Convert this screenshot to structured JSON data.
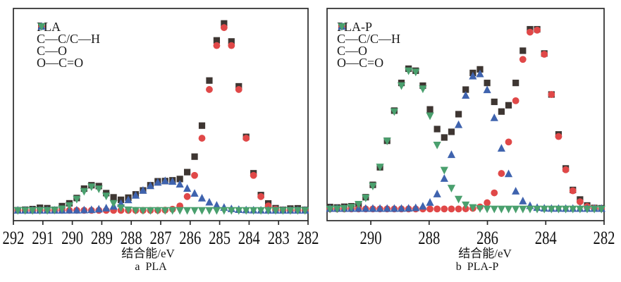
{
  "figure": {
    "description": "XPS C1s spectra with fitted components, two panels",
    "y_axis_note": "intensity, arbitrary units (no y ticks shown)"
  },
  "chart_data": [
    {
      "type": "scatter",
      "panel": "a",
      "title": "",
      "xlabel": "结合能/eV",
      "caption": "a  PLA",
      "x_axis": {
        "min": 292,
        "max": 282,
        "reversed": true,
        "ticks": [
          292,
          291,
          290,
          289,
          288,
          287,
          286,
          285,
          284,
          283,
          282
        ]
      },
      "y_axis": {
        "label": "",
        "ticks_visible": false,
        "range": [
          0,
          1.05
        ]
      },
      "sampling": {
        "x_start_eV": 291.85,
        "x_step_eV": 0.25,
        "n_points": 40
      },
      "legend": {
        "position": "top-left",
        "entries": [
          "PLA",
          "C—C/C—H",
          "C—O",
          "O—C=O"
        ]
      },
      "series": [
        {
          "name": "PLA",
          "marker": "square",
          "color": "#3E3632",
          "role": "envelope",
          "baseline": 0.012,
          "noise": 0.008
        },
        {
          "name": "C—C/C—H",
          "marker": "circle",
          "color": "#E04848",
          "role": "component",
          "baseline": 0.006,
          "peaks": [
            {
              "center_eV": 284.85,
              "height": 0.96,
              "sigma_eV": 0.55
            }
          ]
        },
        {
          "name": "C—O",
          "marker": "triangle-up",
          "color": "#3F63AE",
          "role": "component",
          "baseline": 0.006,
          "peaks": [
            {
              "center_eV": 286.8,
              "height": 0.155,
              "sigma_eV": 0.9
            }
          ]
        },
        {
          "name": "O—C=O",
          "marker": "triangle-down",
          "color": "#4AA06E",
          "role": "component",
          "baseline": 0.006,
          "peaks": [
            {
              "center_eV": 289.3,
              "height": 0.125,
              "sigma_eV": 0.45
            }
          ]
        }
      ],
      "peak_positions_eV": {
        "C—C/C—H": 284.8,
        "C—O": 286.8,
        "O—C=O": 289.3
      }
    },
    {
      "type": "scatter",
      "panel": "b",
      "title": "",
      "xlabel": "结合能/eV",
      "caption": "b  PLA-P",
      "x_axis": {
        "min": 291.5,
        "max": 282,
        "reversed": true,
        "ticks": [
          290,
          288,
          286,
          284,
          282
        ]
      },
      "y_axis": {
        "label": "",
        "ticks_visible": false,
        "range": [
          0,
          1.05
        ]
      },
      "sampling": {
        "x_start_eV": 291.4,
        "x_step_eV": 0.245,
        "n_points": 39
      },
      "legend": {
        "position": "top-left",
        "entries": [
          "PLA-P",
          "C—C/C—H",
          "C—O",
          "O—C=O"
        ]
      },
      "series": [
        {
          "name": "PLA-P",
          "marker": "square",
          "color": "#3E3632",
          "role": "envelope",
          "baseline": 0.012,
          "noise": 0.008
        },
        {
          "name": "C—C/C—H",
          "marker": "circle",
          "color": "#E04848",
          "role": "component",
          "baseline": 0.006,
          "peaks": [
            {
              "center_eV": 284.4,
              "height": 0.96,
              "sigma_eV": 0.62
            }
          ]
        },
        {
          "name": "C—O",
          "marker": "triangle-up",
          "color": "#3F63AE",
          "role": "component",
          "baseline": 0.008,
          "peaks": [
            {
              "center_eV": 286.35,
              "height": 0.72,
              "sigma_eV": 0.65
            }
          ]
        },
        {
          "name": "O—C=O",
          "marker": "triangle-down",
          "color": "#4AA06E",
          "role": "component",
          "baseline": 0.006,
          "peaks": [
            {
              "center_eV": 288.6,
              "height": 0.74,
              "sigma_eV": 0.7
            }
          ]
        }
      ],
      "peak_positions_eV": {
        "C—C/C—H": 284.4,
        "C—O": 286.4,
        "O—C=O": 288.6
      }
    }
  ],
  "colors": {
    "envelope": "#3E3632",
    "cc_ch": "#E04848",
    "c_o": "#3F63AE",
    "o_c_o": "#4AA06E",
    "axis": "#2A2A2A",
    "background": "#FFFFFF"
  }
}
